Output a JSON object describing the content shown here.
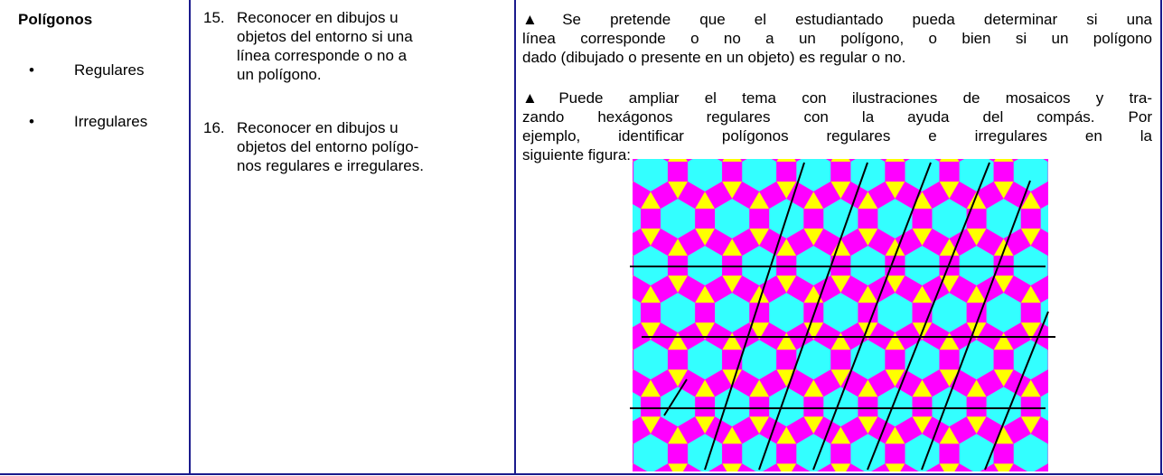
{
  "col1": {
    "title": "Polígonos",
    "bullets": [
      "Regulares",
      "Irregulares"
    ]
  },
  "col2": {
    "items": [
      {
        "number": "15.",
        "lines": [
          "Reconocer en dibujos u",
          "objetos del entorno si una",
          "línea corresponde o no a",
          "un polígono."
        ]
      },
      {
        "number": "16.",
        "lines": [
          "Reconocer en dibujos u",
          "objetos del entorno polígo-",
          "nos regulares e irregulares."
        ]
      }
    ]
  },
  "col3": {
    "paragraphs": [
      {
        "marker": "▲",
        "lines": [
          "Se pretende que el estudiantado pueda determinar si una",
          "línea corresponde o no a un polígono, o bien si un polígono",
          "dado (dibujado o presente en un objeto) es regular o no."
        ]
      },
      {
        "marker": "▲",
        "lines": [
          "Puede ampliar el tema con ilustraciones de mosaicos y tra-",
          "zando hexágonos regulares con la ayuda del compás. Por",
          "ejemplo, identificar polígonos regulares e irregulares en la",
          "siguiente figura:"
        ]
      }
    ]
  }
}
